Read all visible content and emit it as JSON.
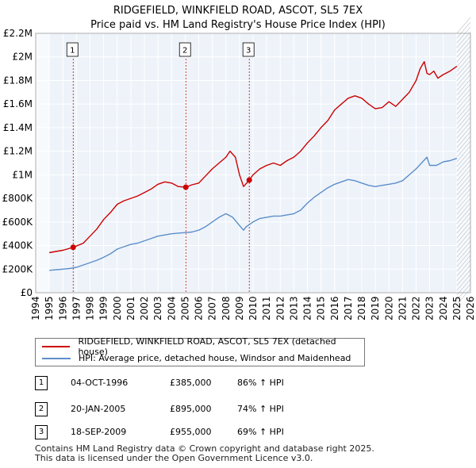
{
  "title_line1": "RIDGEFIELD, WINKFIELD ROAD, ASCOT, SL5 7EX",
  "title_line2": "Price paid vs. HM Land Registry's House Price Index (HPI)",
  "colors": {
    "price_paid": "#cc0000",
    "hpi": "#5b8ec9",
    "shade": "#e6eef8"
  },
  "chart_data": {
    "type": "line",
    "title": "RIDGEFIELD, WINKFIELD ROAD, ASCOT, SL5 7EX — Price paid vs. HM Land Registry's House Price Index (HPI)",
    "xlabel": "",
    "ylabel": "",
    "xlim": [
      1994,
      2026
    ],
    "ylim": [
      0,
      2200000
    ],
    "y_ticks": [
      0,
      200000,
      400000,
      600000,
      800000,
      1000000,
      1200000,
      1400000,
      1600000,
      1800000,
      2000000,
      2200000
    ],
    "y_tick_labels": [
      "£0",
      "£200K",
      "£400K",
      "£600K",
      "£800K",
      "£1M",
      "£1.2M",
      "£1.4M",
      "£1.6M",
      "£1.8M",
      "£2M",
      "£2.2M"
    ],
    "x_ticks": [
      1994,
      1995,
      1996,
      1997,
      1998,
      1999,
      2000,
      2001,
      2002,
      2003,
      2004,
      2005,
      2006,
      2007,
      2008,
      2009,
      2010,
      2011,
      2012,
      2013,
      2014,
      2015,
      2016,
      2017,
      2018,
      2019,
      2020,
      2021,
      2022,
      2023,
      2024,
      2025,
      2026
    ],
    "grid": true,
    "shaded_regions": [
      [
        1994,
        1995
      ],
      [
        2025,
        2026
      ]
    ],
    "series": [
      {
        "name": "RIDGEFIELD, WINKFIELD ROAD, ASCOT, SL5 7EX (detached house)",
        "x": [
          1995.0,
          1995.5,
          1996.0,
          1996.76,
          1997.5,
          1998.0,
          1998.5,
          1999.0,
          1999.5,
          2000.0,
          2000.5,
          2001.0,
          2001.5,
          2002.0,
          2002.5,
          2003.0,
          2003.5,
          2004.0,
          2004.5,
          2005.05,
          2005.5,
          2006.0,
          2006.5,
          2007.0,
          2007.5,
          2008.0,
          2008.3,
          2008.7,
          2009.0,
          2009.3,
          2009.72,
          2010.0,
          2010.5,
          2011.0,
          2011.5,
          2012.0,
          2012.5,
          2013.0,
          2013.5,
          2014.0,
          2014.5,
          2015.0,
          2015.5,
          2016.0,
          2016.5,
          2017.0,
          2017.5,
          2018.0,
          2018.5,
          2019.0,
          2019.5,
          2020.0,
          2020.5,
          2021.0,
          2021.5,
          2022.0,
          2022.3,
          2022.6,
          2022.8,
          2023.0,
          2023.3,
          2023.6,
          2024.0,
          2024.5,
          2025.0
        ],
        "values": [
          340000,
          350000,
          360000,
          385000,
          420000,
          480000,
          540000,
          620000,
          680000,
          750000,
          780000,
          800000,
          820000,
          850000,
          880000,
          920000,
          940000,
          930000,
          900000,
          895000,
          915000,
          930000,
          990000,
          1050000,
          1100000,
          1150000,
          1200000,
          1150000,
          1000000,
          900000,
          955000,
          1000000,
          1050000,
          1080000,
          1100000,
          1080000,
          1120000,
          1150000,
          1200000,
          1270000,
          1330000,
          1400000,
          1460000,
          1550000,
          1600000,
          1650000,
          1670000,
          1650000,
          1600000,
          1560000,
          1570000,
          1620000,
          1580000,
          1640000,
          1700000,
          1800000,
          1900000,
          1960000,
          1860000,
          1850000,
          1880000,
          1820000,
          1850000,
          1880000,
          1920000
        ]
      },
      {
        "name": "HPI: Average price, detached house, Windsor and Maidenhead",
        "x": [
          1995.0,
          1995.5,
          1996.0,
          1996.5,
          1997.0,
          1997.5,
          1998.0,
          1998.5,
          1999.0,
          1999.5,
          2000.0,
          2000.5,
          2001.0,
          2001.5,
          2002.0,
          2002.5,
          2003.0,
          2003.5,
          2004.0,
          2004.5,
          2005.0,
          2005.5,
          2006.0,
          2006.5,
          2007.0,
          2007.5,
          2008.0,
          2008.5,
          2009.0,
          2009.3,
          2009.5,
          2010.0,
          2010.5,
          2011.0,
          2011.5,
          2012.0,
          2012.5,
          2013.0,
          2013.5,
          2014.0,
          2014.5,
          2015.0,
          2015.5,
          2016.0,
          2016.5,
          2017.0,
          2017.5,
          2018.0,
          2018.5,
          2019.0,
          2019.5,
          2020.0,
          2020.5,
          2021.0,
          2021.5,
          2022.0,
          2022.4,
          2022.8,
          2023.0,
          2023.5,
          2024.0,
          2024.5,
          2025.0
        ],
        "values": [
          190000,
          195000,
          200000,
          205000,
          215000,
          235000,
          255000,
          275000,
          300000,
          330000,
          370000,
          390000,
          410000,
          420000,
          440000,
          460000,
          480000,
          490000,
          500000,
          505000,
          510000,
          515000,
          530000,
          560000,
          600000,
          640000,
          670000,
          640000,
          570000,
          530000,
          560000,
          600000,
          630000,
          640000,
          650000,
          650000,
          660000,
          670000,
          700000,
          760000,
          810000,
          850000,
          890000,
          920000,
          940000,
          960000,
          950000,
          930000,
          910000,
          900000,
          910000,
          920000,
          930000,
          950000,
          1000000,
          1050000,
          1100000,
          1150000,
          1080000,
          1080000,
          1110000,
          1120000,
          1140000
        ]
      }
    ],
    "markers": [
      {
        "label": "1",
        "x": 1996.76,
        "value": 385000
      },
      {
        "label": "2",
        "x": 2005.05,
        "value": 895000
      },
      {
        "label": "3",
        "x": 2009.72,
        "value": 955000
      }
    ]
  },
  "legend": {
    "items": [
      {
        "label": "RIDGEFIELD, WINKFIELD ROAD, ASCOT, SL5 7EX (detached house)"
      },
      {
        "label": "HPI: Average price, detached house, Windsor and Maidenhead"
      }
    ]
  },
  "transactions": [
    {
      "num": "1",
      "date": "04-OCT-1996",
      "price": "£385,000",
      "hpi": "86% ↑ HPI"
    },
    {
      "num": "2",
      "date": "20-JAN-2005",
      "price": "£895,000",
      "hpi": "74% ↑ HPI"
    },
    {
      "num": "3",
      "date": "18-SEP-2009",
      "price": "£955,000",
      "hpi": "69% ↑ HPI"
    }
  ],
  "footer": {
    "line1": "Contains HM Land Registry data © Crown copyright and database right 2025.",
    "line2": "This data is licensed under the Open Government Licence v3.0."
  }
}
